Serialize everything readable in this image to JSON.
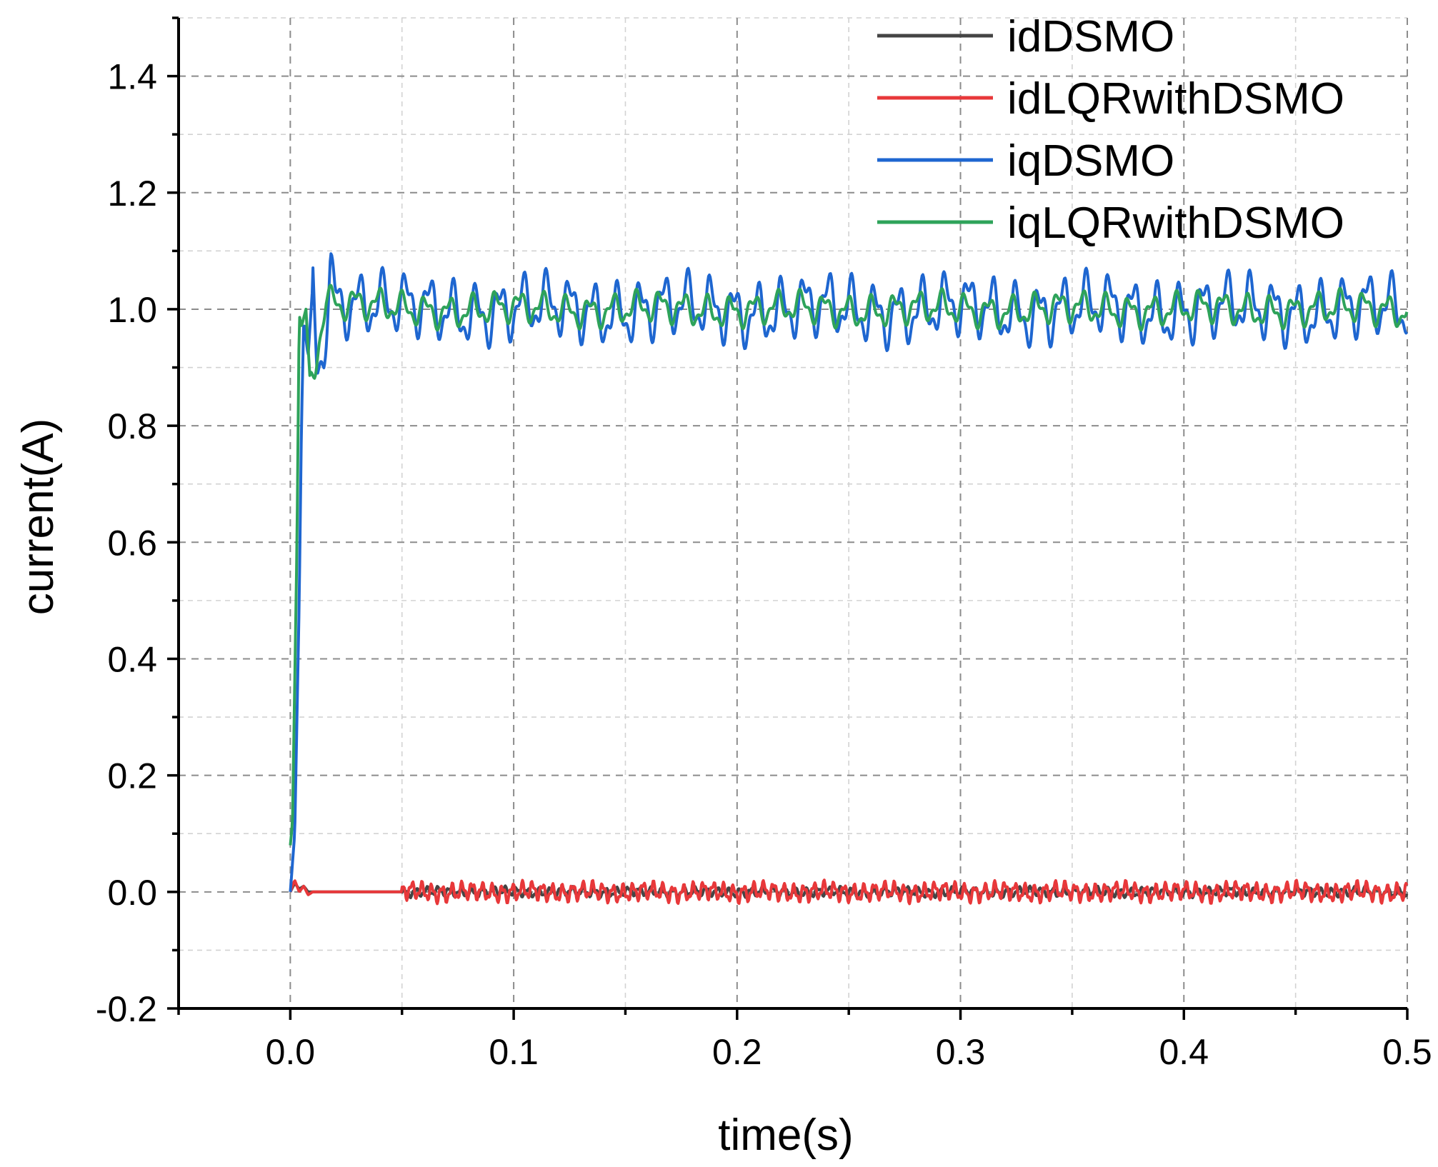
{
  "chart_data": {
    "type": "line",
    "title": "",
    "xlabel": "time(s)",
    "ylabel": "current(A)",
    "xlim": [
      -0.05,
      0.5
    ],
    "ylim": [
      -0.2,
      1.5
    ],
    "x_ticks": [
      0.0,
      0.1,
      0.2,
      0.3,
      0.4,
      0.5
    ],
    "x_tick_labels": [
      "0.0",
      "0.1",
      "0.2",
      "0.3",
      "0.4",
      "0.5"
    ],
    "y_ticks": [
      -0.2,
      0.0,
      0.2,
      0.4,
      0.6,
      0.8,
      1.0,
      1.2,
      1.4
    ],
    "y_tick_labels": [
      "-0.2",
      "0.0",
      "0.2",
      "0.4",
      "0.6",
      "0.8",
      "1.0",
      "1.2",
      "1.4"
    ],
    "grid": "major dashed, minor dashed",
    "legend_position": "top-right",
    "series": [
      {
        "name": "idDSMO",
        "color": "#444444",
        "x": [
          0.0,
          0.002,
          0.004,
          0.006,
          0.008,
          0.01,
          0.05,
          0.1,
          0.15,
          0.2,
          0.25,
          0.3,
          0.35,
          0.4,
          0.45,
          0.5
        ],
        "values": [
          0.0,
          0.015,
          0.005,
          0.01,
          0.0,
          0.0,
          0.0,
          0.0,
          0.0,
          0.0,
          0.0,
          0.0,
          0.0,
          0.0,
          0.0,
          0.0
        ],
        "ripple": {
          "amplitude": 0.008,
          "period": 0.005
        }
      },
      {
        "name": "idLQRwithDSMO",
        "color": "#e8383a",
        "x": [
          0.0,
          0.002,
          0.004,
          0.006,
          0.008,
          0.01,
          0.05,
          0.1,
          0.15,
          0.2,
          0.25,
          0.3,
          0.35,
          0.4,
          0.45,
          0.5
        ],
        "values": [
          0.0,
          0.02,
          0.0,
          0.01,
          -0.005,
          0.0,
          0.0,
          0.0,
          0.0,
          0.0,
          0.0,
          0.0,
          0.0,
          0.0,
          0.0,
          0.0
        ],
        "ripple": {
          "amplitude": 0.016,
          "period": 0.0045
        }
      },
      {
        "name": "iqDSMO",
        "color": "#1e66d0",
        "x": [
          0.0,
          0.002,
          0.004,
          0.005,
          0.006,
          0.008,
          0.01,
          0.012,
          0.015,
          0.018,
          0.02,
          0.05,
          0.1,
          0.15,
          0.2,
          0.25,
          0.3,
          0.35,
          0.4,
          0.45,
          0.5
        ],
        "values": [
          0.0,
          0.1,
          0.5,
          0.8,
          0.98,
          0.92,
          1.04,
          0.9,
          0.95,
          1.08,
          1.02,
          1.0,
          1.0,
          1.0,
          1.0,
          1.0,
          1.0,
          1.0,
          1.0,
          1.0,
          1.0
        ],
        "ripple": {
          "amplitude": 0.055,
          "period": 0.0105
        }
      },
      {
        "name": "iqLQRwithDSMO",
        "color": "#2ea35a",
        "x": [
          0.0,
          0.001,
          0.003,
          0.004,
          0.005,
          0.007,
          0.009,
          0.011,
          0.013,
          0.016,
          0.02,
          0.05,
          0.1,
          0.15,
          0.2,
          0.25,
          0.3,
          0.35,
          0.4,
          0.45,
          0.5
        ],
        "values": [
          0.08,
          0.12,
          0.6,
          0.99,
          0.97,
          1.0,
          0.87,
          0.9,
          0.96,
          1.02,
          1.01,
          1.0,
          1.0,
          1.0,
          1.0,
          1.0,
          1.0,
          1.0,
          1.0,
          1.0,
          1.0
        ],
        "ripple": {
          "amplitude": 0.028,
          "period": 0.0105
        }
      }
    ]
  }
}
